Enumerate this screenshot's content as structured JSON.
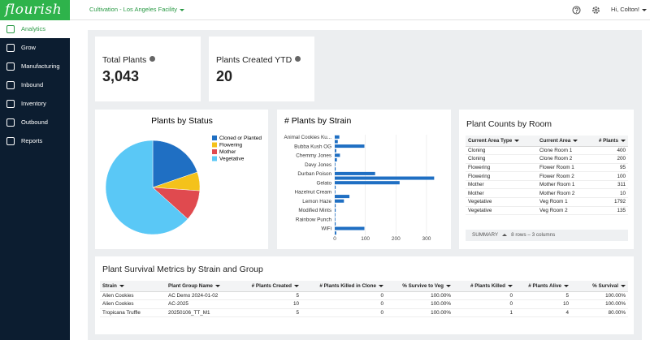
{
  "app": {
    "logo": "flourish",
    "facility": "Cultivation - Los Angeles Facility",
    "greeting": "Hi, Colton!"
  },
  "nav": [
    "Analytics",
    "Grow",
    "Manufacturing",
    "Inbound",
    "Inventory",
    "Outbound",
    "Reports"
  ],
  "kpis": [
    {
      "label": "Total Plants",
      "value": "3,043"
    },
    {
      "label": "Plants Created YTD",
      "value": "20"
    }
  ],
  "chart_data": [
    {
      "type": "pie",
      "title": "Plants by Status",
      "categories": [
        "Cloned or Planted",
        "Flowering",
        "Mother",
        "Vegetative"
      ],
      "values": [
        600,
        195,
        321,
        1927
      ],
      "colors": [
        "#1f6fc3",
        "#f4c21b",
        "#e04a4f",
        "#5ac8f6"
      ],
      "legend": "right"
    },
    {
      "type": "bar",
      "orientation": "horizontal",
      "title": "# Plants by Strain",
      "categories": [
        "Animal Cookies Ku...",
        null,
        "Bubba Kush OG",
        null,
        "Chemmy Jones",
        null,
        "Davy Jones",
        null,
        "Durban Poison",
        null,
        "Gelato",
        null,
        "Hazelnut Cream",
        null,
        "Lemon Haze",
        null,
        "Modified Mints",
        null,
        "Rainbow Punch",
        null,
        "WiFi",
        null
      ],
      "values": [
        15,
        10,
        97,
        5,
        17,
        7,
        2,
        3,
        132,
        325,
        212,
        3,
        2,
        48,
        30,
        3,
        3,
        2,
        2,
        3,
        97,
        5
      ],
      "color": "#1f6fc3",
      "xlim": [
        0,
        340
      ],
      "xticks": [
        0,
        100,
        200,
        300
      ]
    }
  ],
  "room_table": {
    "title": "Plant Counts by Room",
    "columns": [
      "Current Area Type",
      "Current Area",
      "# Plants"
    ],
    "rows": [
      [
        "Cloning",
        "Clone Room 1",
        "400"
      ],
      [
        "Cloning",
        "Clone Room 2",
        "200"
      ],
      [
        "Flowering",
        "Flower Room 1",
        "95"
      ],
      [
        "Flowering",
        "Flower Room 2",
        "100"
      ],
      [
        "Mother",
        "Mother Room 1",
        "311"
      ],
      [
        "Mother",
        "Mother Room 2",
        "10"
      ],
      [
        "Vegetative",
        "Veg Room 1",
        "1792"
      ],
      [
        "Vegetative",
        "Veg Room 2",
        "135"
      ]
    ],
    "summary_label": "SUMMARY",
    "summary": "8 rows – 3 columns"
  },
  "survival_table": {
    "title": "Plant Survival Metrics by Strain and Group",
    "columns": [
      "Strain",
      "Plant Group Name",
      "# Plants Created",
      "# Plants Killed in Clone",
      "% Survive to Veg",
      "# Plants Killed",
      "# Plants Alive",
      "% Survival"
    ],
    "rows": [
      [
        "Alien Cookies",
        "AC Demo 2024-01-02",
        "5",
        "0",
        "100.00%",
        "0",
        "5",
        "100.00%"
      ],
      [
        "Alien Cookies",
        "AC-2025",
        "10",
        "0",
        "100.00%",
        "0",
        "10",
        "100.00%"
      ],
      [
        "Tropicana Truffle",
        "20250106_TT_M1",
        "5",
        "0",
        "100.00%",
        "1",
        "4",
        "80.00%"
      ]
    ]
  }
}
